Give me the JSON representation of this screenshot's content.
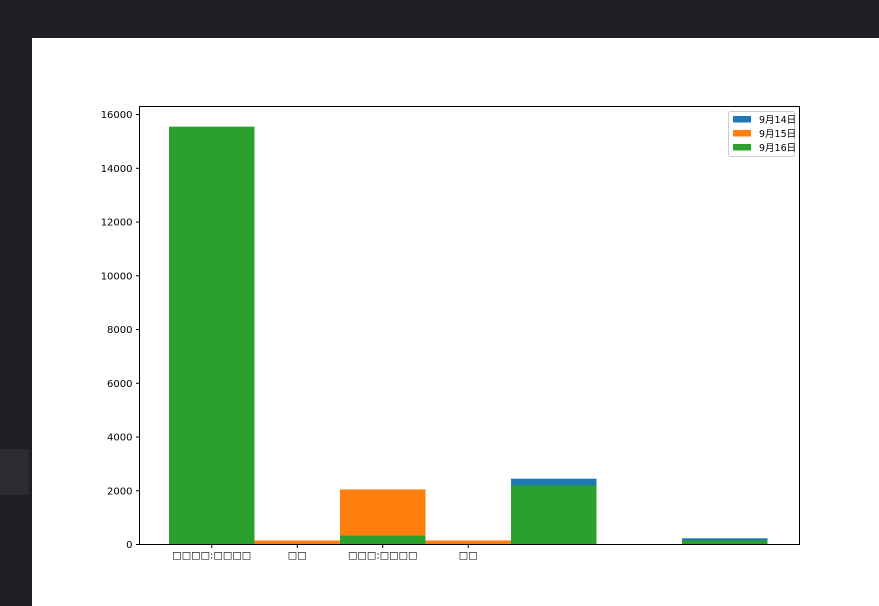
{
  "chart_data": {
    "type": "bar",
    "stacking": "overlaid",
    "categories": [
      "□□□□:□□□□",
      "□□",
      "□□□:□□□□",
      "□□",
      "",
      "",
      ""
    ],
    "series": [
      {
        "name": "9月14日",
        "color": "#1f77b4",
        "values": [
          0,
          0,
          0,
          0,
          2450,
          0,
          230
        ]
      },
      {
        "name": "9月15日",
        "color": "#ff7f0e",
        "values": [
          0,
          150,
          2050,
          150,
          0,
          0,
          0
        ]
      },
      {
        "name": "9月16日",
        "color": "#2ca02c",
        "values": [
          15550,
          0,
          330,
          0,
          2200,
          0,
          150
        ]
      }
    ],
    "title": "",
    "xlabel": "",
    "ylabel": "",
    "ylim": [
      0,
      16300
    ],
    "yticks": [
      0,
      2000,
      4000,
      6000,
      8000,
      10000,
      12000,
      14000,
      16000
    ],
    "ytick_labels": [
      "0",
      "2000",
      "4000",
      "6000",
      "8000",
      "10000",
      "12000",
      "14000",
      "16000"
    ],
    "grid": false,
    "legend": "top-right"
  }
}
